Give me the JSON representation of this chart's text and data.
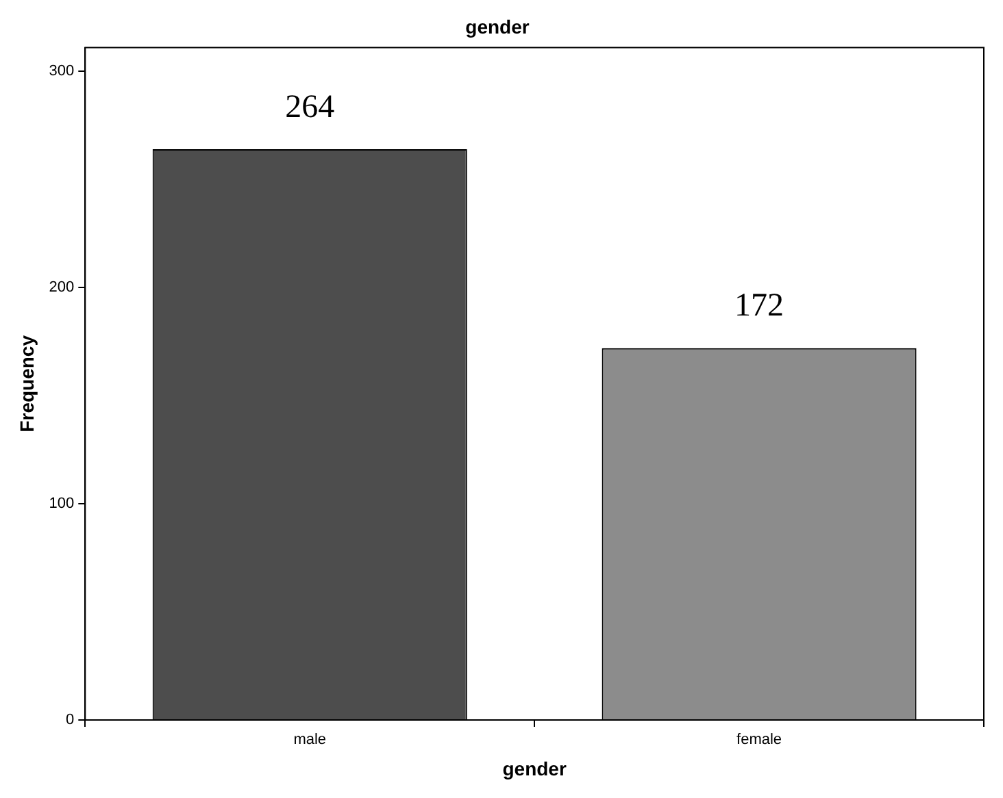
{
  "chart_data": {
    "type": "bar",
    "title": "gender",
    "xlabel": "gender",
    "ylabel": "Frequency",
    "categories": [
      "male",
      "female"
    ],
    "values": [
      264,
      172
    ],
    "colors": [
      "#4d4d4d",
      "#8c8c8c"
    ],
    "ylim": [
      0,
      311
    ],
    "yticks": [
      0,
      100,
      200,
      300
    ],
    "data_labels": true,
    "legend": false
  }
}
